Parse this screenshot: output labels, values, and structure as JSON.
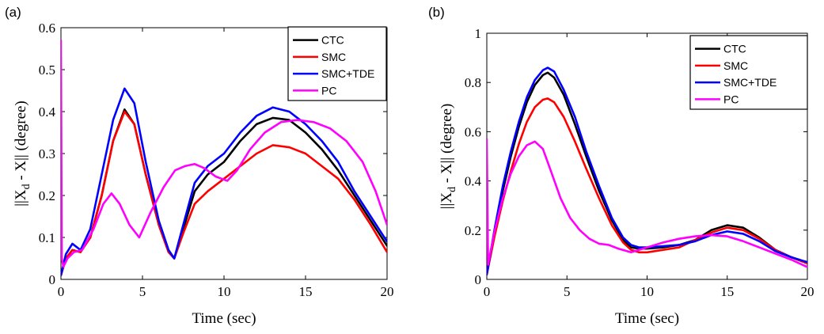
{
  "chart_data": [
    {
      "type": "line",
      "panel_label": "(a)",
      "xlabel": "Time (sec)",
      "ylabel_main": "||X",
      "ylabel_sub": "d",
      "ylabel_rest": " - X|| (degree)",
      "xlim": [
        0,
        20
      ],
      "ylim": [
        0,
        0.6
      ],
      "xticks": [
        "0",
        "5",
        "10",
        "15",
        "20"
      ],
      "yticks": [
        "0",
        "0.1",
        "0.2",
        "0.3",
        "0.4",
        "0.5",
        "0.6"
      ],
      "xtick_values": [
        0,
        5,
        10,
        15,
        20
      ],
      "ytick_values": [
        0,
        0.1,
        0.2,
        0.3,
        0.4,
        0.5,
        0.6
      ],
      "grid": false,
      "legend_position": "top-right",
      "series": [
        {
          "name": "CTC",
          "color": "#000000",
          "x": [
            0,
            0.3,
            0.7,
            1.2,
            1.8,
            2.5,
            3.2,
            3.9,
            4.5,
            5.2,
            6.0,
            6.6,
            6.95,
            7.5,
            8.2,
            9.0,
            10.0,
            11.0,
            12.0,
            13.0,
            14.0,
            15.0,
            16.0,
            17.0,
            18.0,
            19.0,
            20.0
          ],
          "y": [
            0.01,
            0.05,
            0.07,
            0.065,
            0.1,
            0.2,
            0.33,
            0.405,
            0.37,
            0.25,
            0.13,
            0.065,
            0.05,
            0.12,
            0.21,
            0.25,
            0.28,
            0.33,
            0.37,
            0.385,
            0.38,
            0.35,
            0.31,
            0.26,
            0.2,
            0.14,
            0.08
          ]
        },
        {
          "name": "SMC",
          "color": "#ff0000",
          "x": [
            0,
            0.3,
            0.7,
            1.2,
            1.8,
            2.5,
            3.2,
            3.9,
            4.5,
            5.2,
            6.0,
            6.6,
            6.95,
            7.5,
            8.2,
            9.0,
            10.0,
            11.0,
            12.0,
            13.0,
            14.0,
            15.0,
            16.0,
            17.0,
            18.0,
            19.0,
            20.0
          ],
          "y": [
            0.01,
            0.05,
            0.07,
            0.065,
            0.1,
            0.2,
            0.33,
            0.4,
            0.37,
            0.25,
            0.13,
            0.065,
            0.05,
            0.11,
            0.18,
            0.21,
            0.24,
            0.27,
            0.3,
            0.32,
            0.315,
            0.3,
            0.27,
            0.24,
            0.19,
            0.13,
            0.065
          ]
        },
        {
          "name": "SMC+TDE",
          "color": "#0000ff",
          "x": [
            0,
            0.3,
            0.7,
            1.2,
            1.8,
            2.5,
            3.2,
            3.9,
            4.5,
            5.2,
            6.0,
            6.6,
            6.95,
            7.5,
            8.2,
            9.0,
            10.0,
            11.0,
            12.0,
            13.0,
            14.0,
            15.0,
            16.0,
            17.0,
            18.0,
            19.0,
            20.0
          ],
          "y": [
            0.01,
            0.06,
            0.085,
            0.07,
            0.12,
            0.25,
            0.38,
            0.455,
            0.42,
            0.28,
            0.14,
            0.07,
            0.05,
            0.13,
            0.23,
            0.27,
            0.3,
            0.35,
            0.39,
            0.41,
            0.4,
            0.37,
            0.33,
            0.28,
            0.21,
            0.15,
            0.09
          ]
        },
        {
          "name": "PC",
          "color": "#ff00ff",
          "x": [
            0,
            0.05,
            0.15,
            0.4,
            0.8,
            1.3,
            2.0,
            2.6,
            3.1,
            3.6,
            4.2,
            4.8,
            5.5,
            6.3,
            7.0,
            7.6,
            8.2,
            8.8,
            9.5,
            10.2,
            10.8,
            11.6,
            12.5,
            13.5,
            14.5,
            15.5,
            16.5,
            17.5,
            18.5,
            19.3,
            20.0
          ],
          "y": [
            0.57,
            0.05,
            0.03,
            0.05,
            0.065,
            0.07,
            0.12,
            0.18,
            0.205,
            0.18,
            0.13,
            0.1,
            0.16,
            0.22,
            0.26,
            0.27,
            0.275,
            0.265,
            0.245,
            0.235,
            0.26,
            0.31,
            0.35,
            0.375,
            0.38,
            0.375,
            0.36,
            0.33,
            0.28,
            0.21,
            0.13
          ]
        }
      ]
    },
    {
      "type": "line",
      "panel_label": "(b)",
      "xlabel": "Time (sec)",
      "ylabel_main": "||X",
      "ylabel_sub": "d",
      "ylabel_rest": " - X|| (degree)",
      "xlim": [
        0,
        20
      ],
      "ylim": [
        0,
        1
      ],
      "xticks": [
        "0",
        "5",
        "10",
        "15",
        "20"
      ],
      "yticks": [
        "0",
        "0.2",
        "0.4",
        "0.6",
        "0.8",
        "1"
      ],
      "xtick_values": [
        0,
        5,
        10,
        15,
        20
      ],
      "ytick_values": [
        0,
        0.2,
        0.4,
        0.6,
        0.8,
        1.0
      ],
      "grid": false,
      "legend_position": "top-right",
      "series": [
        {
          "name": "CTC",
          "color": "#000000",
          "x": [
            0,
            0.5,
            1.0,
            1.5,
            2.0,
            2.5,
            3.0,
            3.5,
            3.8,
            4.2,
            4.8,
            5.5,
            6.2,
            7.0,
            7.8,
            8.5,
            9.0,
            9.5,
            10.0,
            11.0,
            12.0,
            13.0,
            14.0,
            15.0,
            16.0,
            17.0,
            18.0,
            19.0,
            20.0
          ],
          "y": [
            0.02,
            0.2,
            0.36,
            0.5,
            0.62,
            0.72,
            0.79,
            0.83,
            0.84,
            0.82,
            0.75,
            0.63,
            0.5,
            0.36,
            0.24,
            0.16,
            0.13,
            0.125,
            0.125,
            0.13,
            0.14,
            0.16,
            0.2,
            0.22,
            0.21,
            0.17,
            0.12,
            0.09,
            0.065
          ]
        },
        {
          "name": "SMC",
          "color": "#ff0000",
          "x": [
            0,
            0.5,
            1.0,
            1.5,
            2.0,
            2.5,
            3.0,
            3.5,
            3.8,
            4.2,
            4.8,
            5.5,
            6.2,
            7.0,
            7.8,
            8.5,
            9.0,
            9.5,
            10.0,
            11.0,
            12.0,
            13.0,
            14.0,
            15.0,
            16.0,
            17.0,
            18.0,
            19.0,
            20.0
          ],
          "y": [
            0.02,
            0.18,
            0.32,
            0.44,
            0.55,
            0.64,
            0.7,
            0.73,
            0.735,
            0.72,
            0.66,
            0.56,
            0.45,
            0.33,
            0.22,
            0.15,
            0.12,
            0.11,
            0.11,
            0.12,
            0.13,
            0.16,
            0.19,
            0.21,
            0.2,
            0.165,
            0.12,
            0.09,
            0.065
          ]
        },
        {
          "name": "SMC+TDE",
          "color": "#0000ff",
          "x": [
            0,
            0.5,
            1.0,
            1.5,
            2.0,
            2.5,
            3.0,
            3.5,
            3.8,
            4.2,
            4.8,
            5.5,
            6.2,
            7.0,
            7.8,
            8.5,
            9.0,
            9.5,
            10.0,
            11.0,
            12.0,
            13.0,
            14.0,
            15.0,
            16.0,
            17.0,
            18.0,
            19.0,
            20.0
          ],
          "y": [
            0.02,
            0.21,
            0.38,
            0.52,
            0.64,
            0.74,
            0.81,
            0.85,
            0.86,
            0.845,
            0.77,
            0.66,
            0.52,
            0.38,
            0.25,
            0.17,
            0.14,
            0.13,
            0.13,
            0.135,
            0.14,
            0.155,
            0.18,
            0.195,
            0.185,
            0.155,
            0.115,
            0.09,
            0.07
          ]
        },
        {
          "name": "PC",
          "color": "#ff00ff",
          "x": [
            0,
            0.08,
            0.2,
            0.5,
            1.0,
            1.5,
            2.0,
            2.5,
            3.0,
            3.5,
            4.0,
            4.6,
            5.2,
            5.8,
            6.4,
            7.0,
            7.6,
            8.2,
            9.0,
            10.0,
            11.0,
            12.0,
            13.0,
            14.0,
            15.0,
            16.0,
            17.0,
            18.0,
            19.0,
            20.0
          ],
          "y": [
            0.57,
            0.06,
            0.1,
            0.2,
            0.33,
            0.43,
            0.5,
            0.545,
            0.56,
            0.53,
            0.44,
            0.33,
            0.25,
            0.2,
            0.165,
            0.145,
            0.14,
            0.125,
            0.11,
            0.13,
            0.15,
            0.165,
            0.175,
            0.18,
            0.175,
            0.155,
            0.13,
            0.105,
            0.08,
            0.05
          ]
        }
      ]
    }
  ]
}
